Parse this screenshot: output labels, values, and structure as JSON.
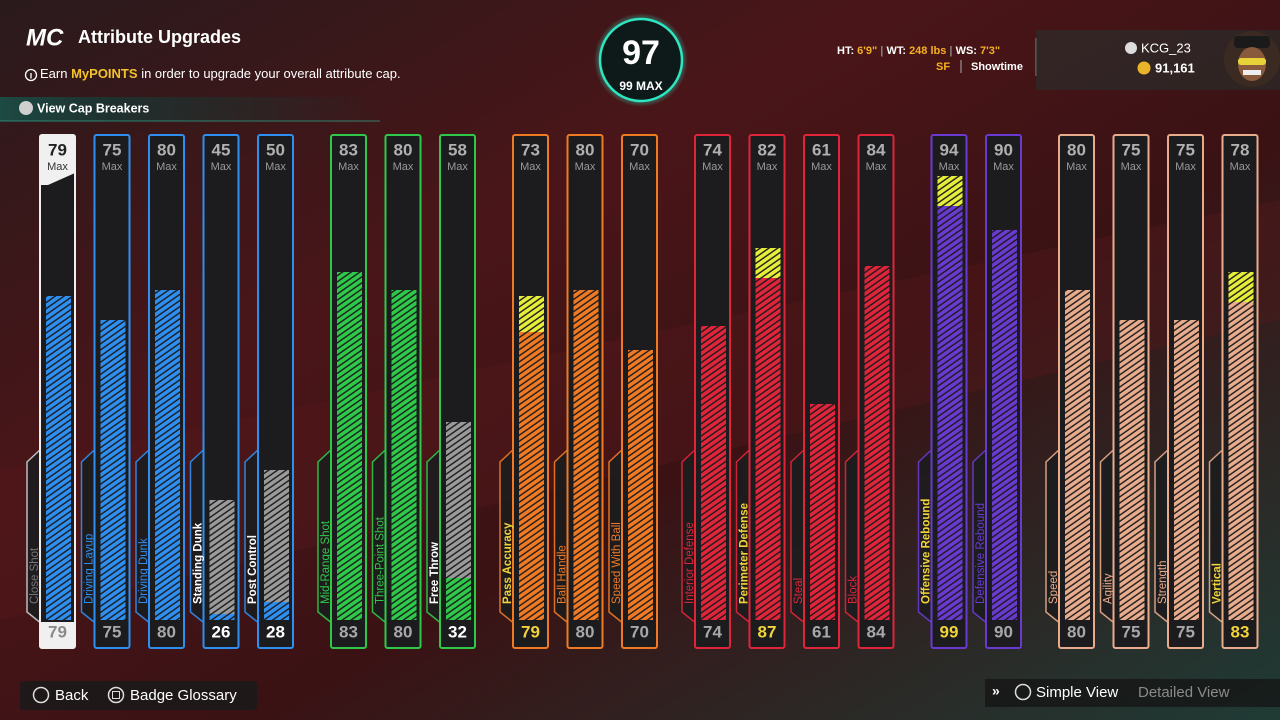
{
  "header": {
    "logo": "MC",
    "title": "Attribute Upgrades",
    "info": {
      "prefix": "Earn",
      "highlight": "MyPOINTS",
      "suffix": "in order to upgrade your overall attribute cap."
    },
    "cap_breakers_button": "View Cap Breakers"
  },
  "overall": {
    "rating": 97,
    "max_label": "99 MAX"
  },
  "player": {
    "height_label": "HT:",
    "height": "6'9\"",
    "weight_label": "WT:",
    "weight": "248 lbs",
    "wingspan_label": "WS:",
    "wingspan": "7'3\"",
    "position": "SF",
    "archetype": "Showtime"
  },
  "user": {
    "gamertag": "KCG_23",
    "currency": "91,161"
  },
  "max_label": "Max",
  "groups": [
    {
      "color": "#2f8ff0",
      "attributes": [
        {
          "name": "Close Shot",
          "cap": 79,
          "value": 79,
          "selected": true
        },
        {
          "name": "Driving Layup",
          "cap": 75,
          "value": 75
        },
        {
          "name": "Driving Dunk",
          "cap": 80,
          "value": 80
        },
        {
          "name": "Standing Dunk",
          "cap": 45,
          "value": 26
        },
        {
          "name": "Post Control",
          "cap": 50,
          "value": 28
        }
      ]
    },
    {
      "color": "#2fc94a",
      "attributes": [
        {
          "name": "Mid-Range Shot",
          "cap": 83,
          "value": 83
        },
        {
          "name": "Three-Point Shot",
          "cap": 80,
          "value": 80
        },
        {
          "name": "Free Throw",
          "cap": 58,
          "value": 32
        }
      ]
    },
    {
      "color": "#f07a24",
      "attributes": [
        {
          "name": "Pass Accuracy",
          "cap": 73,
          "value": 79
        },
        {
          "name": "Ball Handle",
          "cap": 80,
          "value": 80
        },
        {
          "name": "Speed With Ball",
          "cap": 70,
          "value": 70
        }
      ]
    },
    {
      "color": "#e0253a",
      "attributes": [
        {
          "name": "Interior Defense",
          "cap": 74,
          "value": 74
        },
        {
          "name": "Perimeter Defense",
          "cap": 82,
          "value": 87
        },
        {
          "name": "Steal",
          "cap": 61,
          "value": 61
        },
        {
          "name": "Block",
          "cap": 84,
          "value": 84
        }
      ]
    },
    {
      "color": "#6a3ad0",
      "attributes": [
        {
          "name": "Offensive Rebound",
          "cap": 94,
          "value": 99
        },
        {
          "name": "Defensive Rebound",
          "cap": 90,
          "value": 90
        }
      ]
    },
    {
      "color": "#e8ab8c",
      "attributes": [
        {
          "name": "Speed",
          "cap": 80,
          "value": 80
        },
        {
          "name": "Agility",
          "cap": 75,
          "value": 75
        },
        {
          "name": "Strength",
          "cap": 75,
          "value": 75
        },
        {
          "name": "Vertical",
          "cap": 78,
          "value": 83
        }
      ]
    }
  ],
  "footer": {
    "back": "Back",
    "badge_glossary": "Badge Glossary",
    "simple_view": "Simple View",
    "detailed_view": "Detailed View"
  }
}
